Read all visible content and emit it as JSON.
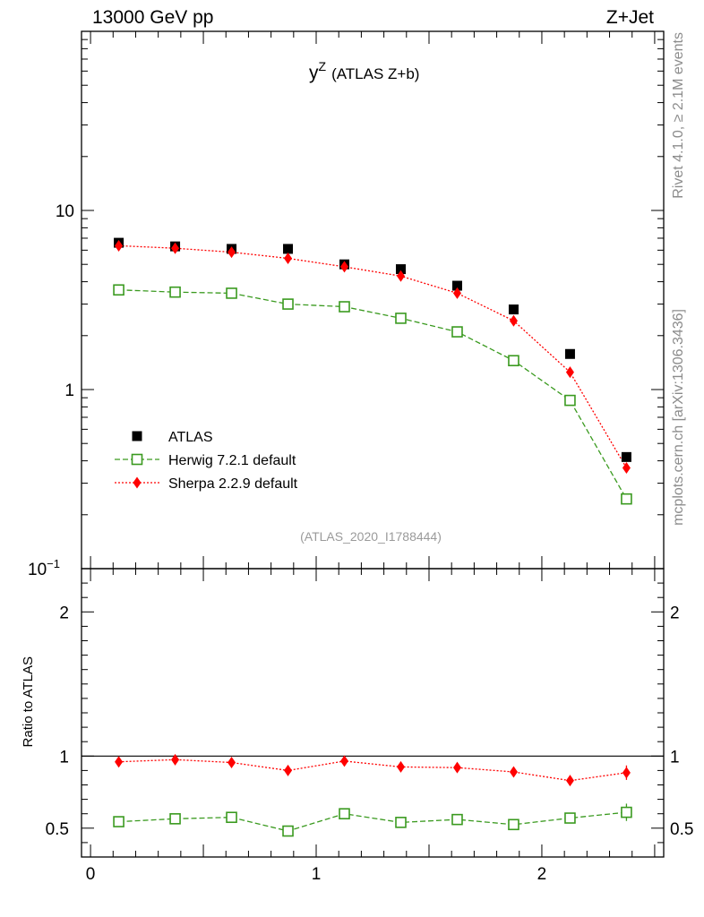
{
  "header": {
    "left": "13000 GeV pp",
    "right": "Z+Jet"
  },
  "side": {
    "rivet": "Rivet 4.1.0, ≥ 2.1M events",
    "mcplots": "mcplots.cern.ch [arXiv:1306.3436]"
  },
  "chart_data": [
    {
      "type": "scatter",
      "title_main": "y",
      "title_sup": "Z",
      "title_rest": "(ATLAS Z+b)",
      "analysis_id": "(ATLAS_2020_I1788444)",
      "yscale": "log",
      "xlim": [
        -0.04,
        2.54
      ],
      "ylim": [
        0.1,
        100
      ],
      "y_ticks": [
        {
          "v": 0.1,
          "base": "10",
          "exp": "−1"
        },
        {
          "v": 1,
          "label": "1"
        },
        {
          "v": 10,
          "label": "10"
        }
      ],
      "x": [
        0.125,
        0.375,
        0.625,
        0.875,
        1.125,
        1.375,
        1.625,
        1.875,
        2.125,
        2.375
      ],
      "legend": {
        "position": "bottom-left"
      },
      "series": [
        {
          "name": "ATLAS",
          "marker": "square",
          "color": "#000000",
          "values": [
            6.6,
            6.3,
            6.1,
            6.1,
            5.0,
            4.7,
            3.8,
            2.8,
            1.58,
            0.42
          ]
        },
        {
          "name": "Herwig 7.2.1 default",
          "marker": "open-square",
          "color": "#3a9a1f",
          "line": "dashed",
          "values": [
            3.6,
            3.5,
            3.45,
            3.0,
            2.9,
            2.5,
            2.1,
            1.45,
            0.87,
            0.245
          ]
        },
        {
          "name": "Sherpa 2.2.9 default",
          "marker": "diamond",
          "color": "#ff0000",
          "line": "dotted",
          "values": [
            6.35,
            6.15,
            5.85,
            5.4,
            4.85,
            4.3,
            3.45,
            2.42,
            1.25,
            0.365
          ]
        }
      ]
    },
    {
      "type": "scatter",
      "ylabel": "Ratio to ATLAS",
      "ylim": [
        0.3,
        2.3
      ],
      "reference": 1,
      "y_ticks": [
        {
          "v": 0.5,
          "label": "0.5"
        },
        {
          "v": 1,
          "label": "1"
        },
        {
          "v": 2,
          "label": "2"
        }
      ],
      "x_ticks": [
        {
          "v": 0,
          "label": "0"
        },
        {
          "v": 1,
          "label": "1"
        },
        {
          "v": 2,
          "label": "2"
        }
      ],
      "x": [
        0.125,
        0.375,
        0.625,
        0.875,
        1.125,
        1.375,
        1.625,
        1.875,
        2.125,
        2.375
      ],
      "series": [
        {
          "name": "Herwig 7.2.1 default",
          "marker": "open-square",
          "color": "#3a9a1f",
          "line": "dashed",
          "values": [
            0.545,
            0.565,
            0.575,
            0.48,
            0.6,
            0.54,
            0.56,
            0.525,
            0.57,
            0.61
          ],
          "errors": [
            0,
            0,
            0,
            0,
            0.01,
            0,
            0.01,
            0.015,
            0.03,
            0.06
          ]
        },
        {
          "name": "Sherpa 2.2.9 default",
          "marker": "diamond",
          "color": "#ff0000",
          "line": "dotted",
          "values": [
            0.96,
            0.975,
            0.955,
            0.9,
            0.965,
            0.925,
            0.92,
            0.89,
            0.83,
            0.885
          ],
          "errors": [
            0,
            0,
            0,
            0,
            0,
            0,
            0,
            0.01,
            0.02,
            0.05
          ]
        }
      ]
    }
  ]
}
